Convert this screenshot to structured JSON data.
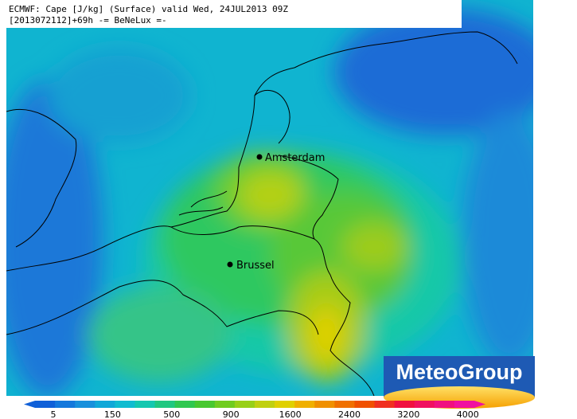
{
  "header": {
    "line1": "ECMWF: Cape [J/kg] (Surface) valid Wed, 24JUL2013 09Z",
    "line2": "[2013072112]+69h -= BeNeLux =-"
  },
  "cities": [
    {
      "label": "Amsterdam"
    },
    {
      "label": "Brussel"
    }
  ],
  "logo": {
    "text": "MeteoGroup"
  },
  "colorbar": {
    "ticks": [
      5,
      150,
      500,
      900,
      1600,
      2400,
      3200,
      4000
    ]
  }
}
